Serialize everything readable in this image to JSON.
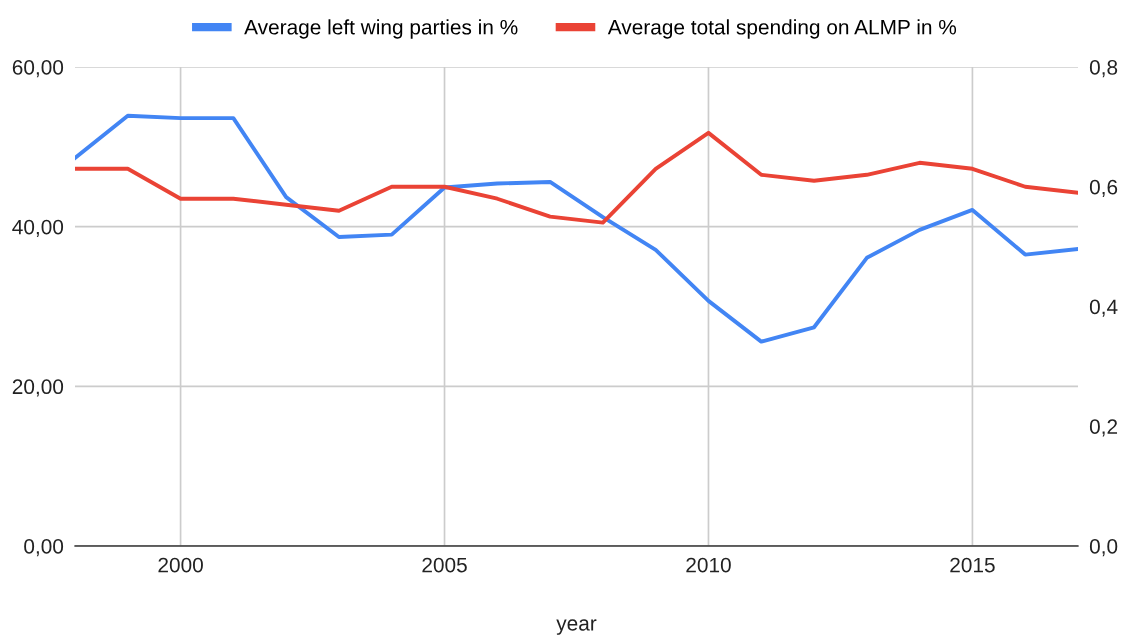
{
  "chart_data": {
    "type": "line",
    "xlabel": "year",
    "x": [
      1998,
      1999,
      2000,
      2001,
      2002,
      2003,
      2004,
      2005,
      2006,
      2007,
      2008,
      2009,
      2010,
      2011,
      2012,
      2013,
      2014,
      2015,
      2016,
      2017
    ],
    "series": [
      {
        "name": "Average left wing parties in %",
        "color": "#4285f4",
        "values": [
          48.6,
          53.9,
          53.6,
          53.6,
          43.7,
          38.7,
          39.0,
          44.9,
          45.4,
          45.6,
          41.2,
          37.1,
          30.7,
          25.6,
          27.4,
          36.1,
          39.6,
          42.1,
          36.5,
          37.2
        ]
      },
      {
        "name": "Average total spending on ALMP in %",
        "color": "#ea4335",
        "axis": "y2",
        "values": [
          0.63,
          0.63,
          0.58,
          0.58,
          0.57,
          0.56,
          0.6,
          0.6,
          0.58,
          0.55,
          0.54,
          0.63,
          0.69,
          0.62,
          0.61,
          0.62,
          0.64,
          0.63,
          0.6,
          0.59
        ]
      }
    ],
    "xlim": [
      1998,
      2017
    ],
    "xticks": [
      2000,
      2005,
      2010,
      2015
    ],
    "ylim": [
      0,
      60
    ],
    "yticks": [
      {
        "value": 0,
        "label": "0,00"
      },
      {
        "value": 20,
        "label": "20,00"
      },
      {
        "value": 40,
        "label": "40,00"
      },
      {
        "value": 60,
        "label": "60,00"
      }
    ],
    "y2lim": [
      0,
      0.8
    ],
    "y2ticks": [
      {
        "value": 0,
        "label": "0,0"
      },
      {
        "value": 0.2,
        "label": "0,2"
      },
      {
        "value": 0.4,
        "label": "0,4"
      },
      {
        "value": 0.6,
        "label": "0,6"
      },
      {
        "value": 0.8,
        "label": "0,8"
      }
    ],
    "grid": true,
    "legend": "top",
    "marker": "none",
    "line_style": "solid"
  }
}
